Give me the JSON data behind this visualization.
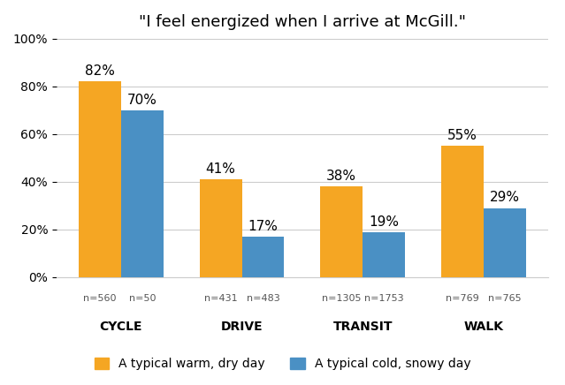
{
  "title": "\"I feel energized when I arrive at McGill.\"",
  "categories": [
    "CYCLE",
    "DRIVE",
    "TRANSIT",
    "WALK"
  ],
  "warm_values": [
    82,
    41,
    38,
    55
  ],
  "cold_values": [
    70,
    17,
    19,
    29
  ],
  "warm_color": "#F5A623",
  "cold_color": "#4A90C4",
  "warm_label": "A typical warm, dry day",
  "cold_label": "A typical cold, snowy day",
  "n_warm": [
    "n=560",
    "n=431",
    "n=1305",
    "n=769"
  ],
  "n_cold": [
    "n=50",
    "n=483",
    "n=1753",
    "n=765"
  ],
  "ylim": [
    0,
    100
  ],
  "yticks": [
    0,
    20,
    40,
    60,
    80,
    100
  ],
  "bar_width": 0.35,
  "background_color": "#ffffff",
  "title_fontsize": 13,
  "tick_fontsize": 10,
  "label_fontsize": 10,
  "annotation_fontsize": 11,
  "n_fontsize": 8,
  "cat_fontsize": 10
}
